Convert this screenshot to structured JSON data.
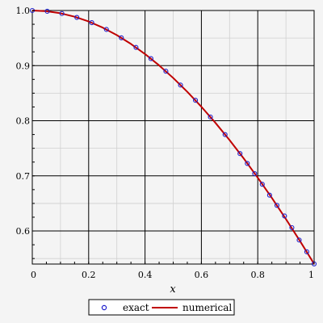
{
  "chart_data": {
    "type": "line",
    "xlabel": "x",
    "ylabel": "",
    "xlim": [
      0,
      1
    ],
    "ylim": [
      0.54,
      1.0
    ],
    "x_ticks": [
      0,
      0.2,
      0.4,
      0.6,
      0.8,
      1
    ],
    "x_tick_labels": [
      "0",
      "0.2",
      "0.4",
      "0.6",
      "0.8",
      "1"
    ],
    "y_ticks": [
      0.6,
      0.7,
      0.8,
      0.9,
      1.0
    ],
    "y_tick_labels": [
      "0.6",
      "0.7",
      "0.8",
      "0.9",
      "1.0"
    ],
    "grid": true,
    "legend": {
      "placement": "bottom-center",
      "entries": [
        "exact",
        "numerical"
      ]
    },
    "series": [
      {
        "name": "exact",
        "style": "markers",
        "marker": "circle",
        "color": "#1f1fcc",
        "x": [
          0,
          0.053,
          0.105,
          0.158,
          0.211,
          0.263,
          0.316,
          0.368,
          0.421,
          0.474,
          0.526,
          0.579,
          0.632,
          0.684,
          0.737,
          0.763,
          0.789,
          0.816,
          0.842,
          0.868,
          0.895,
          0.921,
          0.947,
          0.974,
          1.0
        ],
        "y": [
          1.0,
          0.9986,
          0.9945,
          0.9875,
          0.9779,
          0.9656,
          0.9505,
          0.933,
          0.9127,
          0.8898,
          0.8647,
          0.8371,
          0.8068,
          0.7749,
          0.7404,
          0.7225,
          0.704,
          0.6848,
          0.665,
          0.6465,
          0.6272,
          0.6061,
          0.5836,
          0.5622,
          0.5403
        ]
      },
      {
        "name": "numerical",
        "style": "line",
        "color": "#c00000",
        "x": [
          0,
          0.05,
          0.1,
          0.15,
          0.2,
          0.25,
          0.3,
          0.35,
          0.4,
          0.45,
          0.5,
          0.55,
          0.6,
          0.65,
          0.7,
          0.75,
          0.8,
          0.85,
          0.9,
          0.95,
          1.0
        ],
        "y": [
          1.0,
          0.99875,
          0.995,
          0.98877,
          0.98007,
          0.96891,
          0.95534,
          0.93937,
          0.92106,
          0.90045,
          0.87758,
          0.85252,
          0.82534,
          0.7961,
          0.76484,
          0.73169,
          0.69671,
          0.65998,
          0.62161,
          0.58168,
          0.5403
        ]
      }
    ]
  }
}
